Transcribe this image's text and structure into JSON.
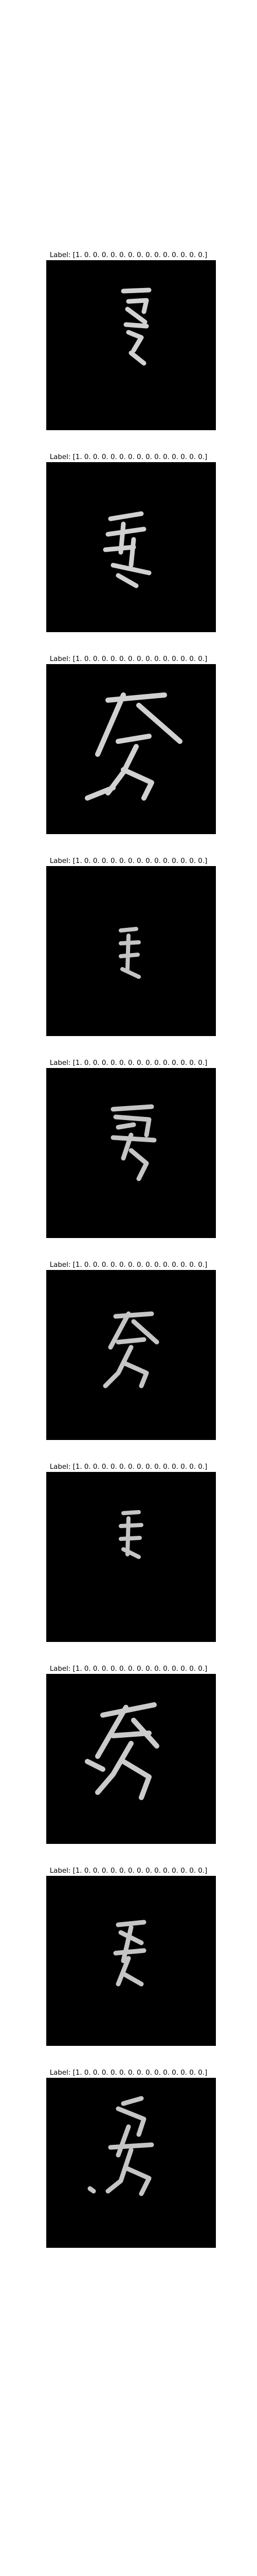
{
  "figure": {
    "panels": [
      {
        "title": "Label: [1. 0. 0. 0. 0. 0. 0. 0. 0. 0. 0. 0. 0. 0. 0.]"
      },
      {
        "title": "Label: [1. 0. 0. 0. 0. 0. 0. 0. 0. 0. 0. 0. 0. 0. 0.]"
      },
      {
        "title": "Label: [1. 0. 0. 0. 0. 0. 0. 0. 0. 0. 0. 0. 0. 0. 0.]"
      },
      {
        "title": "Label: [1. 0. 0. 0. 0. 0. 0. 0. 0. 0. 0. 0. 0. 0. 0.]"
      },
      {
        "title": "Label: [1. 0. 0. 0. 0. 0. 0. 0. 0. 0. 0. 0. 0. 0. 0.]"
      },
      {
        "title": "Label: [1. 0. 0. 0. 0. 0. 0. 0. 0. 0. 0. 0. 0. 0. 0.]"
      },
      {
        "title": "Label: [1. 0. 0. 0. 0. 0. 0. 0. 0. 0. 0. 0. 0. 0. 0.]"
      },
      {
        "title": "Label: [1. 0. 0. 0. 0. 0. 0. 0. 0. 0. 0. 0. 0. 0. 0.]"
      },
      {
        "title": "Label: [1. 0. 0. 0. 0. 0. 0. 0. 0. 0. 0. 0. 0. 0. 0.]"
      },
      {
        "title": "Label: [1. 0. 0. 0. 0. 0. 0. 0. 0. 0. 0. 0. 0. 0. 0.]"
      }
    ],
    "colors": {
      "background": "#ffffff",
      "image_background": "#000000",
      "glyph": "#e8e8e8"
    }
  }
}
